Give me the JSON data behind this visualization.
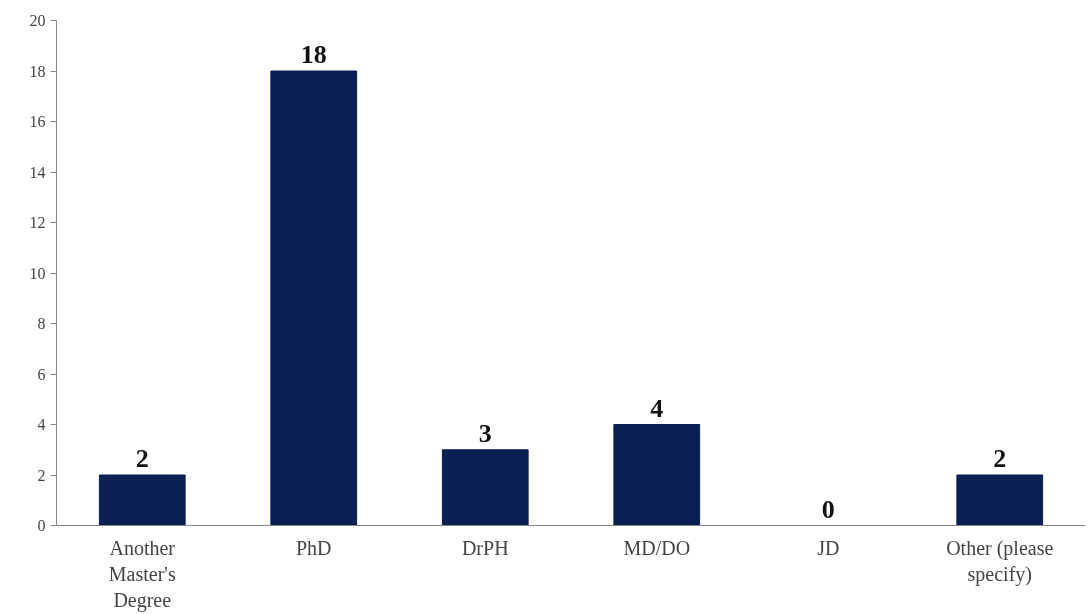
{
  "chart_data": {
    "type": "bar",
    "categories": [
      "Another\nMaster's\nDegree",
      "PhD",
      "DrPH",
      "MD/DO",
      "JD",
      "Other (please\nspecify)"
    ],
    "values": [
      2,
      18,
      3,
      4,
      0,
      2
    ],
    "color": "#0a1f52",
    "ylim": [
      0,
      20
    ],
    "yticks": [
      0,
      2,
      4,
      6,
      8,
      10,
      12,
      14,
      16,
      18,
      20
    ],
    "grid": false,
    "data_labels": true
  }
}
